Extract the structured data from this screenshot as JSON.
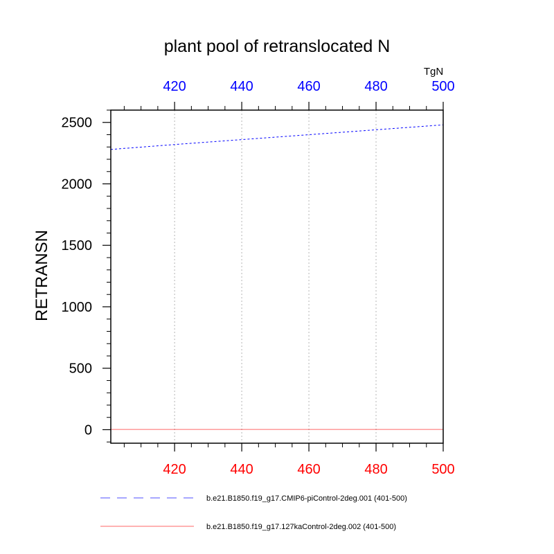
{
  "chart_data": {
    "type": "line",
    "title": "plant pool of retranslocated N",
    "units": "TgN",
    "ylabel": "RETRANSN",
    "xlim": [
      401,
      500
    ],
    "ylim": [
      -110,
      2600
    ],
    "x_ticks": [
      420,
      440,
      460,
      480,
      500
    ],
    "y_ticks": [
      0,
      500,
      1000,
      1500,
      2000,
      2500
    ],
    "bottom_axis_color": "#ff0000",
    "top_axis_color": "#0000ff",
    "grid": "vertical dotted",
    "series": [
      {
        "name": "b.e21.B1850.f19_g17.CMIP6-piControl-2deg.001 (401-500)",
        "color": "#0000ff",
        "dash": "dashed",
        "x": [
          401,
          420,
          440,
          460,
          480,
          500
        ],
        "y": [
          2280,
          2320,
          2360,
          2400,
          2440,
          2480
        ]
      },
      {
        "name": "b.e21.B1850.f19_g17.127kaControl-2deg.002 (401-500)",
        "color": "#ff0000",
        "dash": "solid",
        "x": [
          401,
          500
        ],
        "y": [
          2,
          2
        ]
      }
    ]
  }
}
